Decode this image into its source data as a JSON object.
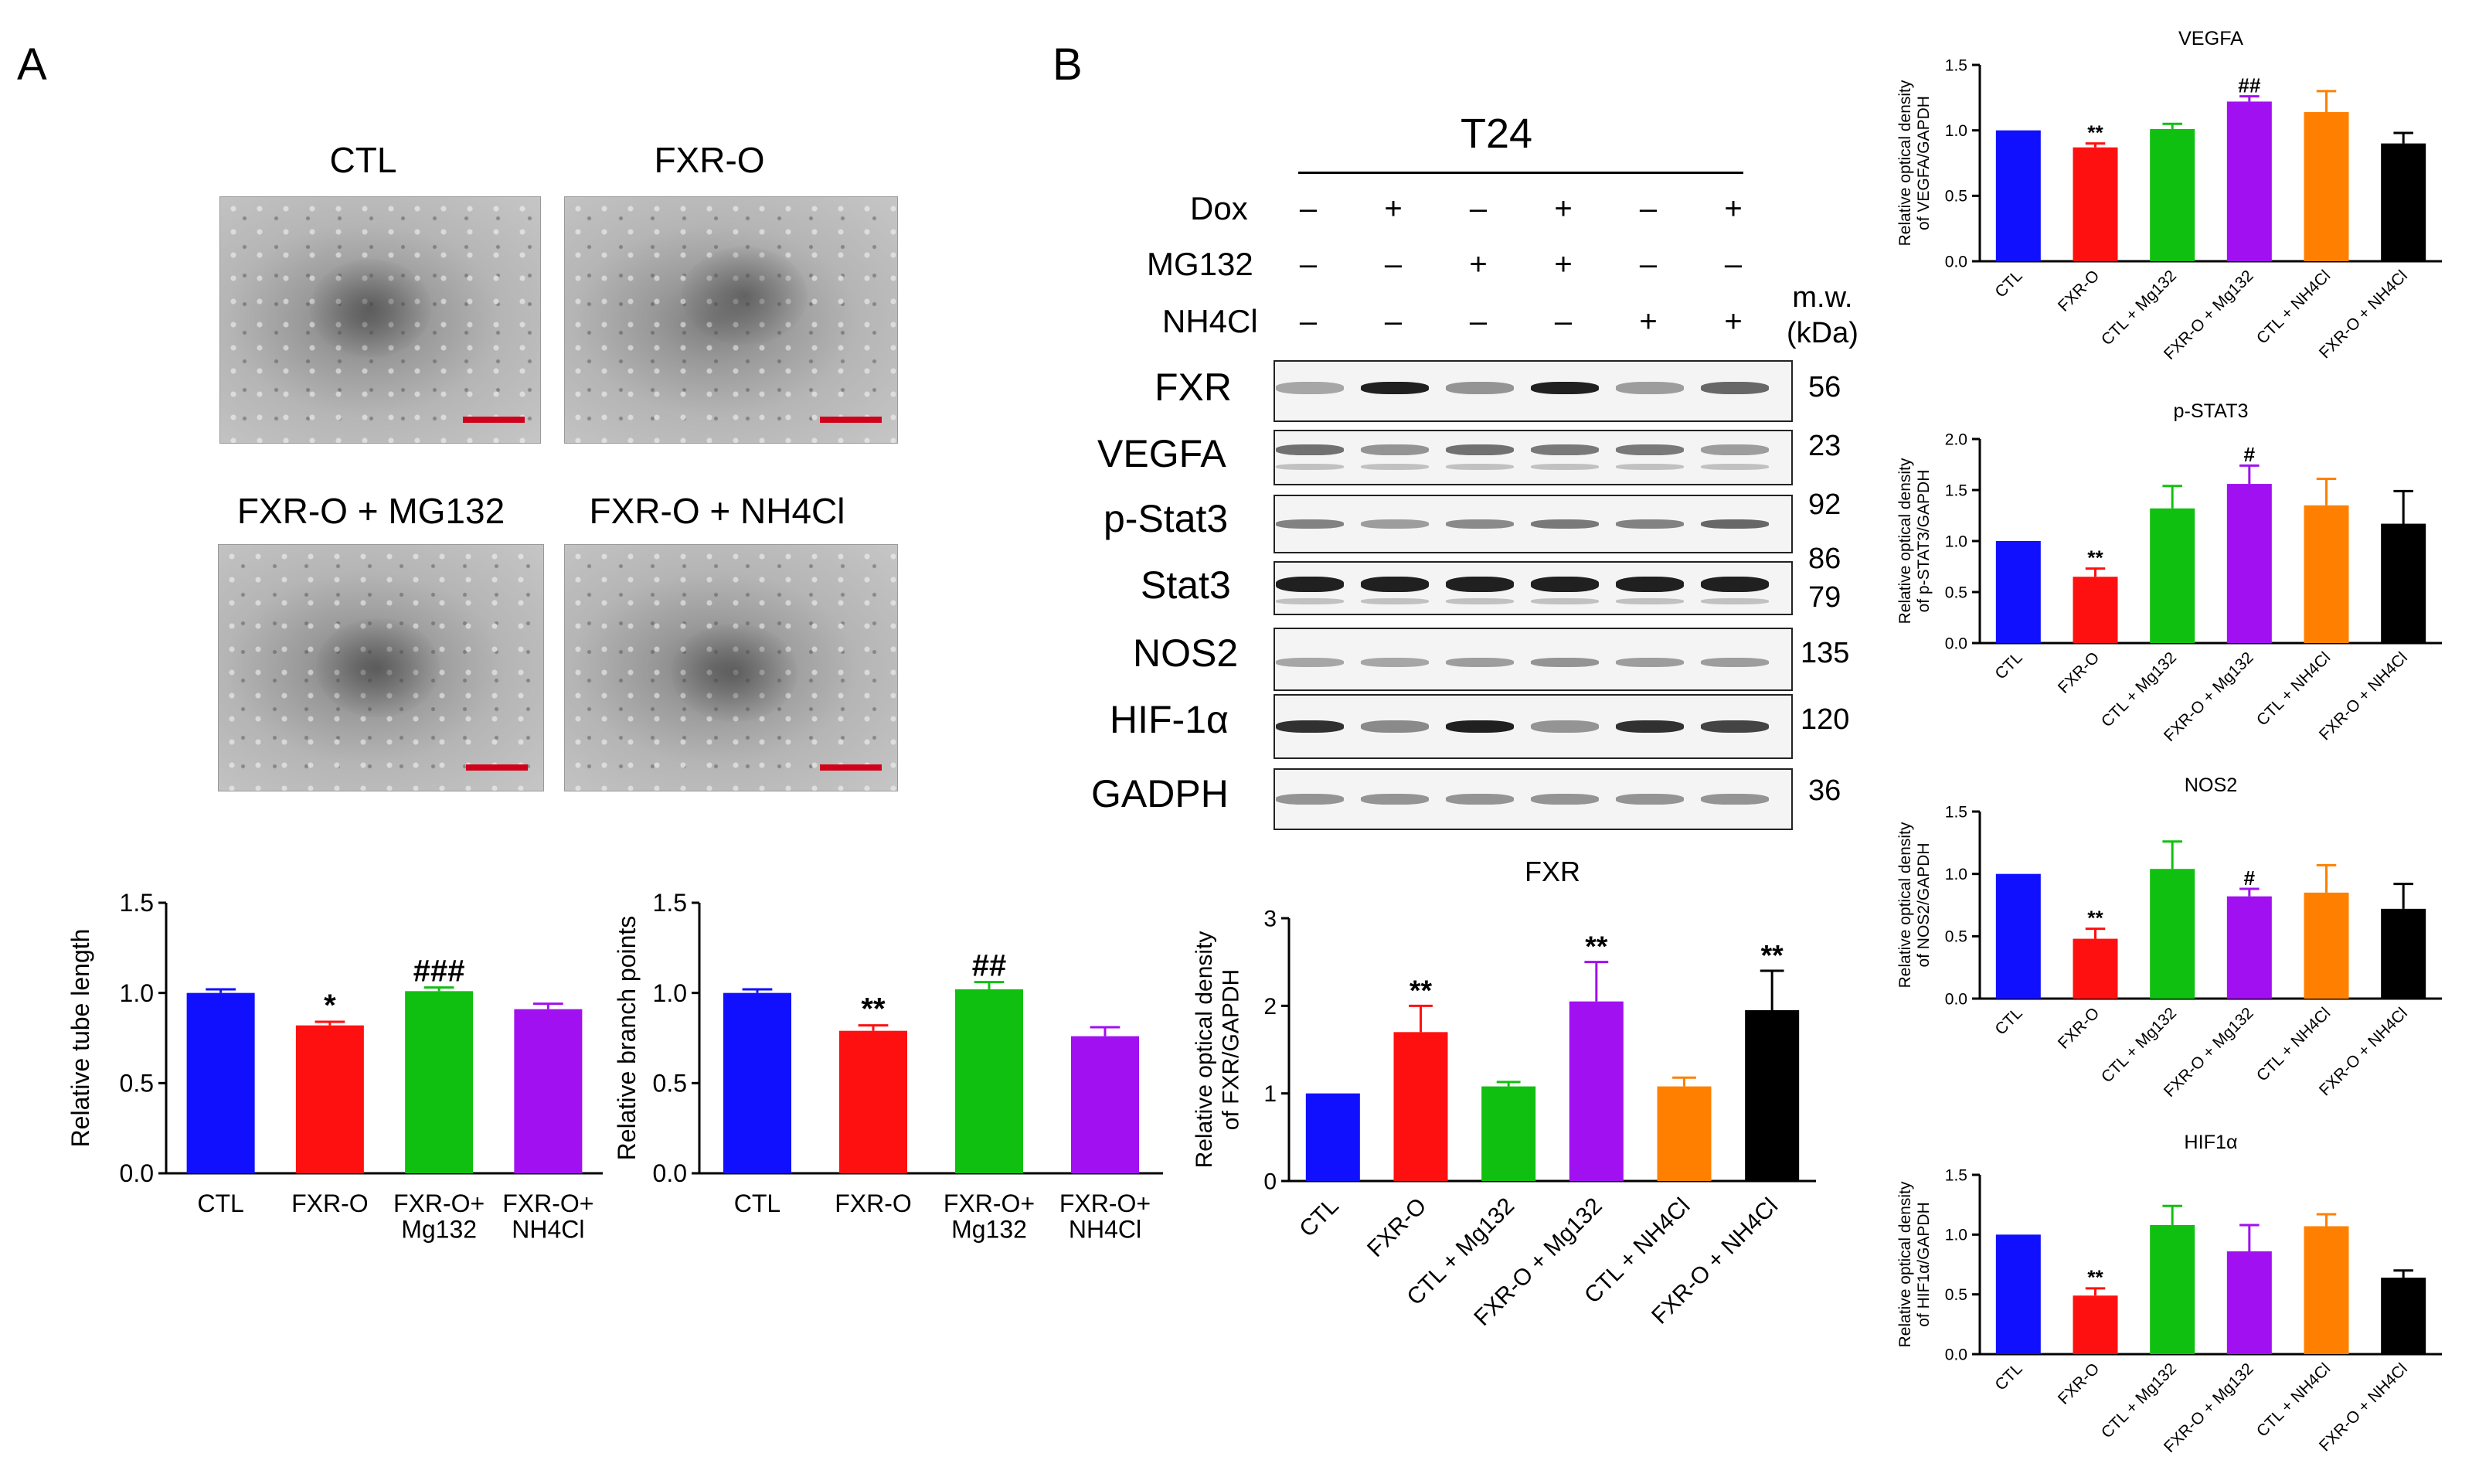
{
  "panel_a": {
    "letter": "A",
    "micrographs": [
      {
        "title": "CTL"
      },
      {
        "title": "FXR-O"
      },
      {
        "title": "FXR-O + MG132"
      },
      {
        "title": "FXR-O + NH4Cl"
      }
    ]
  },
  "panel_b": {
    "letter": "B",
    "cell_line": "T24",
    "treatments": [
      {
        "label": "Dox",
        "signs": [
          "–",
          "+",
          "–",
          "+",
          "–",
          "+"
        ]
      },
      {
        "label": "MG132",
        "signs": [
          "–",
          "–",
          "+",
          "+",
          "–",
          "–"
        ]
      },
      {
        "label": "NH4Cl",
        "signs": [
          "–",
          "–",
          "–",
          "–",
          "+",
          "+"
        ]
      }
    ],
    "mw_header": [
      "m.w.",
      "(kDa)"
    ],
    "blots": [
      {
        "label": "FXR",
        "mw": "56"
      },
      {
        "label": "VEGFA",
        "mw": "23"
      },
      {
        "label": "p-Stat3",
        "mw": "92"
      },
      {
        "label": "Stat3",
        "mw": "86",
        "mw2": "79"
      },
      {
        "label": "NOS2",
        "mw": "135"
      },
      {
        "label": "HIF-1α",
        "mw": "120"
      },
      {
        "label": "GADPH",
        "mw": "36"
      }
    ]
  },
  "colors": {
    "blue": "#1010ff",
    "red": "#ff1010",
    "green": "#10c010",
    "purple": "#a010f0",
    "orange": "#ff8000",
    "black": "#000000",
    "scalebar": "#d0021b"
  },
  "chart_data": [
    {
      "id": "tube",
      "type": "bar",
      "title": "",
      "ylabel": "Relative tube length",
      "ylim": [
        0,
        1.5
      ],
      "yticks": [
        "0.0",
        "0.5",
        "1.0",
        "1.5"
      ],
      "categories": [
        [
          "CTL"
        ],
        [
          "FXR-O"
        ],
        [
          "FXR-O+",
          "Mg132"
        ],
        [
          "FXR-O+",
          "NH4Cl"
        ]
      ],
      "rotate_labels": false,
      "colors": [
        "blue",
        "red",
        "green",
        "purple"
      ],
      "values": [
        1.0,
        0.82,
        1.01,
        0.91
      ],
      "errors": [
        0.02,
        0.02,
        0.02,
        0.03
      ],
      "annotations": [
        "",
        "*",
        "###",
        ""
      ]
    },
    {
      "id": "branch",
      "type": "bar",
      "title": "",
      "ylabel": "Relative branch points",
      "ylim": [
        0,
        1.5
      ],
      "yticks": [
        "0.0",
        "0.5",
        "1.0",
        "1.5"
      ],
      "categories": [
        [
          "CTL"
        ],
        [
          "FXR-O"
        ],
        [
          "FXR-O+",
          "Mg132"
        ],
        [
          "FXR-O+",
          "NH4Cl"
        ]
      ],
      "rotate_labels": false,
      "colors": [
        "blue",
        "red",
        "green",
        "purple"
      ],
      "values": [
        1.0,
        0.79,
        1.02,
        0.76
      ],
      "errors": [
        0.02,
        0.03,
        0.04,
        0.05
      ],
      "annotations": [
        "",
        "**",
        "##",
        ""
      ]
    },
    {
      "id": "fxr",
      "type": "bar",
      "title": "FXR",
      "ylabel": [
        "Relative optical density",
        "of FXR/GAPDH"
      ],
      "ylim": [
        0,
        3
      ],
      "yticks": [
        "0",
        "1",
        "2",
        "3"
      ],
      "categories": [
        [
          "CTL"
        ],
        [
          "FXR-O"
        ],
        [
          "CTL + Mg132"
        ],
        [
          "FXR-O + Mg132"
        ],
        [
          "CTL + NH4Cl"
        ],
        [
          "FXR-O + NH4Cl"
        ]
      ],
      "rotate_labels": true,
      "colors": [
        "blue",
        "red",
        "green",
        "purple",
        "orange",
        "black"
      ],
      "values": [
        1.0,
        1.7,
        1.08,
        2.05,
        1.08,
        1.95
      ],
      "errors": [
        0,
        0.3,
        0.05,
        0.45,
        0.1,
        0.45
      ],
      "annotations": [
        "",
        "**",
        "",
        "**",
        "",
        "**"
      ]
    },
    {
      "id": "vegfa",
      "type": "bar",
      "title": "VEGFA",
      "ylabel": [
        "Relative optical density",
        "of VEGFA/GAPDH"
      ],
      "ylim": [
        0,
        1.5
      ],
      "yticks": [
        "0.0",
        "0.5",
        "1.0",
        "1.5"
      ],
      "categories": [
        [
          "CTL"
        ],
        [
          "FXR-O"
        ],
        [
          "CTL + Mg132"
        ],
        [
          "FXR-O + Mg132"
        ],
        [
          "CTL + NH4Cl"
        ],
        [
          "FXR-O + NH4Cl"
        ]
      ],
      "rotate_labels": true,
      "colors": [
        "blue",
        "red",
        "green",
        "purple",
        "orange",
        "black"
      ],
      "values": [
        1.0,
        0.87,
        1.01,
        1.22,
        1.14,
        0.9
      ],
      "errors": [
        0,
        0.03,
        0.04,
        0.04,
        0.16,
        0.08
      ],
      "annotations": [
        "",
        "**",
        "",
        "##",
        "",
        ""
      ]
    },
    {
      "id": "pstat3",
      "type": "bar",
      "title": "p-STAT3",
      "ylabel": [
        "Relative optical density",
        "of p-STAT3/GAPDH"
      ],
      "ylim": [
        0,
        2.0
      ],
      "yticks": [
        "0.0",
        "0.5",
        "1.0",
        "1.5",
        "2.0"
      ],
      "categories": [
        [
          "CTL"
        ],
        [
          "FXR-O"
        ],
        [
          "CTL + Mg132"
        ],
        [
          "FXR-O + Mg132"
        ],
        [
          "CTL + NH4Cl"
        ],
        [
          "FXR-O + NH4Cl"
        ]
      ],
      "rotate_labels": true,
      "colors": [
        "blue",
        "red",
        "green",
        "purple",
        "orange",
        "black"
      ],
      "values": [
        1.0,
        0.65,
        1.32,
        1.56,
        1.35,
        1.17
      ],
      "errors": [
        0,
        0.08,
        0.22,
        0.18,
        0.26,
        0.32
      ],
      "annotations": [
        "",
        "**",
        "",
        "#",
        "",
        ""
      ]
    },
    {
      "id": "nos2",
      "type": "bar",
      "title": "NOS2",
      "ylabel": [
        "Relative optical density",
        "of NOS2/GAPDH"
      ],
      "ylim": [
        0,
        1.5
      ],
      "yticks": [
        "0.0",
        "0.5",
        "1.0",
        "1.5"
      ],
      "categories": [
        [
          "CTL"
        ],
        [
          "FXR-O"
        ],
        [
          "CTL + Mg132"
        ],
        [
          "FXR-O + Mg132"
        ],
        [
          "CTL + NH4Cl"
        ],
        [
          "FXR-O + NH4Cl"
        ]
      ],
      "rotate_labels": true,
      "colors": [
        "blue",
        "red",
        "green",
        "purple",
        "orange",
        "black"
      ],
      "values": [
        1.0,
        0.48,
        1.04,
        0.82,
        0.85,
        0.72
      ],
      "errors": [
        0,
        0.08,
        0.22,
        0.06,
        0.22,
        0.2
      ],
      "annotations": [
        "",
        "**",
        "",
        "#",
        "",
        ""
      ]
    },
    {
      "id": "hif1a",
      "type": "bar",
      "title": "HIF1α",
      "ylabel": [
        "Relative optical density",
        "of HIF1α/GAPDH"
      ],
      "ylim": [
        0,
        1.5
      ],
      "yticks": [
        "0.0",
        "0.5",
        "1.0",
        "1.5"
      ],
      "categories": [
        [
          "CTL"
        ],
        [
          "FXR-O"
        ],
        [
          "CTL + Mg132"
        ],
        [
          "FXR-O + Mg132"
        ],
        [
          "CTL + NH4Cl"
        ],
        [
          "FXR-O + NH4Cl"
        ]
      ],
      "rotate_labels": true,
      "colors": [
        "blue",
        "red",
        "green",
        "purple",
        "orange",
        "black"
      ],
      "values": [
        1.0,
        0.49,
        1.08,
        0.86,
        1.07,
        0.64
      ],
      "errors": [
        0,
        0.06,
        0.16,
        0.22,
        0.1,
        0.06
      ],
      "annotations": [
        "",
        "**",
        "",
        "",
        "",
        ""
      ]
    }
  ]
}
